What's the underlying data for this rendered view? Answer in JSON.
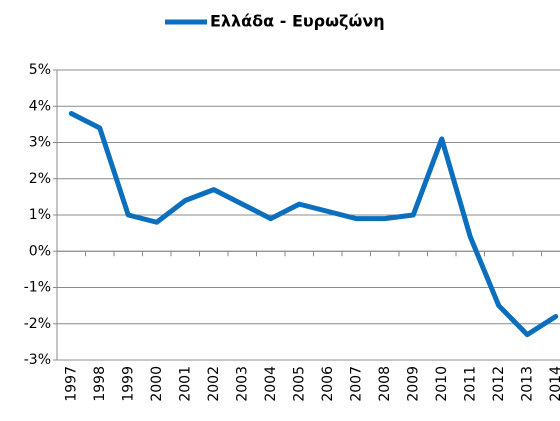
{
  "chart_data": {
    "type": "line",
    "categories": [
      "1997",
      "1998",
      "1999",
      "2000",
      "2001",
      "2002",
      "2003",
      "2004",
      "2005",
      "2006",
      "2007",
      "2008",
      "2009",
      "2010",
      "2011",
      "2012",
      "2013",
      "2014"
    ],
    "series": [
      {
        "name": "Ελλάδα - Ευρωζώνη",
        "color": "#0b6fbe",
        "values": [
          3.8,
          3.4,
          1.0,
          0.8,
          1.4,
          1.7,
          1.3,
          0.9,
          1.3,
          1.1,
          0.9,
          0.9,
          1.0,
          3.1,
          0.4,
          -1.5,
          -2.3,
          -1.8
        ]
      }
    ],
    "ylim": [
      -3,
      5
    ],
    "yticks": [
      {
        "value": -3,
        "label": "-3%"
      },
      {
        "value": -2,
        "label": "-2%"
      },
      {
        "value": -1,
        "label": "-1%"
      },
      {
        "value": 0,
        "label": "0%"
      },
      {
        "value": 1,
        "label": "1%"
      },
      {
        "value": 2,
        "label": "2%"
      },
      {
        "value": 3,
        "label": "3%"
      },
      {
        "value": 4,
        "label": "4%"
      },
      {
        "value": 5,
        "label": "5%"
      }
    ],
    "grid": true,
    "legend": "top"
  }
}
